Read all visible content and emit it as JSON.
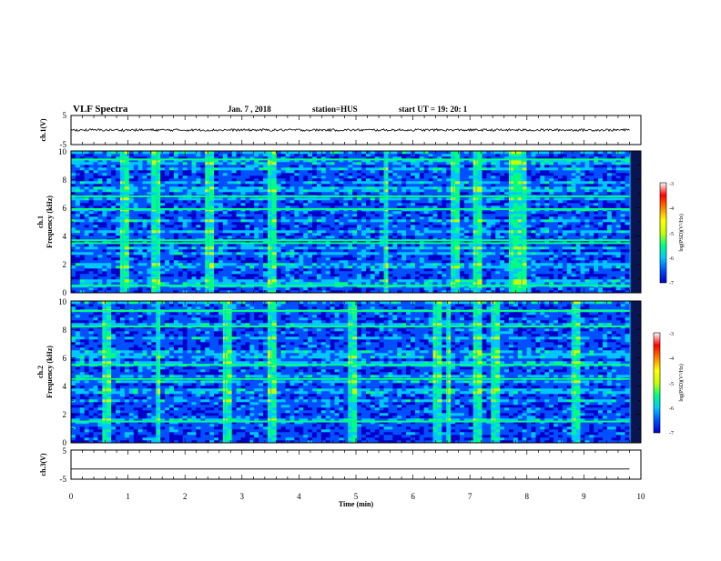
{
  "header": {
    "title": "VLF Spectra",
    "date": "Jan.  7 , 2018",
    "station": "station=HUS",
    "start": "start  UT =   19: 20: 1"
  },
  "chart_data": [
    {
      "type": "line",
      "ylabel": "ch.1(V)",
      "ylim": [
        -5,
        5
      ],
      "yticks": [
        "5",
        "-5"
      ],
      "baseline": 0,
      "noise_amplitude": 0.4
    },
    {
      "type": "heatmap",
      "ylabel_line1": "ch.1",
      "ylabel_line2": "Frequency (kHz)",
      "ylim": [
        0,
        10
      ],
      "yticks": [
        "0",
        "2",
        "4",
        "6",
        "8",
        "10"
      ],
      "colorbar_label": "log(PSD)(V²/Hz)",
      "colorbar_range": [
        -7,
        -3
      ],
      "colorbar_ticks": [
        "-3",
        "-4",
        "-5",
        "-6",
        "-7"
      ],
      "strong_lines_khz": [
        0.5,
        3.5,
        3.7,
        5.9,
        6.8,
        9.4
      ],
      "vertical_events_min": [
        0.9,
        1.4,
        1.5,
        2.4,
        3.5,
        5.5,
        6.7,
        7.1,
        7.7,
        7.9,
        9.8
      ]
    },
    {
      "type": "heatmap",
      "ylabel_line1": "ch.2",
      "ylabel_line2": "Frequency (kHz)",
      "ylim": [
        0,
        10
      ],
      "yticks": [
        "0",
        "2",
        "4",
        "6",
        "8",
        "10"
      ],
      "colorbar_label": "log(PSD)(V²/Hz)",
      "colorbar_range": [
        -7,
        -3
      ],
      "colorbar_ticks": [
        "-3",
        "-4",
        "-5",
        "-6",
        "-7"
      ],
      "strong_lines_khz": [
        1.5,
        4.5,
        5.5,
        8.2,
        9.3
      ],
      "vertical_events_min": [
        0.6,
        1.5,
        2.7,
        3.5,
        4.9,
        6.4,
        6.6,
        7.1,
        7.4,
        8.8,
        9.8
      ]
    },
    {
      "type": "line",
      "ylabel": "ch.3(V)",
      "ylim": [
        -5,
        5
      ],
      "yticks": [
        "5",
        "-5"
      ],
      "baseline": -1.5,
      "noise_amplitude": 0
    }
  ],
  "xaxis": {
    "label": "Time (min)",
    "range": [
      0,
      10
    ],
    "ticks": [
      "0",
      "1",
      "2",
      "3",
      "4",
      "5",
      "6",
      "7",
      "8",
      "9",
      "10"
    ],
    "data_end": 9.8
  },
  "colormap": [
    "#000030",
    "#0000c8",
    "#0050ff",
    "#00c8ff",
    "#00ff80",
    "#c8ff00",
    "#ffff00",
    "#ff8000",
    "#ff0000",
    "#ffffff"
  ]
}
